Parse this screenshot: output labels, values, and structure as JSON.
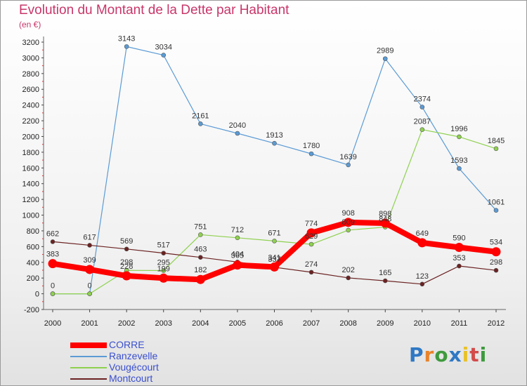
{
  "title": "Evolution du Montant de la Dette par Habitant",
  "unit": "(en €)",
  "logo": {
    "text": "Proxiti",
    "letters": [
      {
        "ch": "P",
        "color": "#2f78c4"
      },
      {
        "ch": "r",
        "color": "#e8832a"
      },
      {
        "ch": "o",
        "color": "#3e9a3e"
      },
      {
        "ch": "x",
        "color": "#2f78c4"
      },
      {
        "ch": "i",
        "color": "#e8c22a"
      },
      {
        "ch": "t",
        "color": "#d34b4b"
      },
      {
        "ch": "i",
        "color": "#3e9a3e"
      }
    ]
  },
  "chart_data": {
    "type": "line",
    "categories": [
      "2000",
      "2001",
      "2002",
      "2003",
      "2004",
      "2005",
      "2006",
      "2007",
      "2008",
      "2009",
      "2010",
      "2011",
      "2012"
    ],
    "ylim": [
      -200,
      3200
    ],
    "yticks": [
      -200,
      0,
      200,
      400,
      600,
      800,
      1000,
      1200,
      1400,
      1600,
      1800,
      2000,
      2200,
      2400,
      2600,
      2800,
      3000,
      3200
    ],
    "grid": false,
    "legend_position": "bottom-left",
    "series": [
      {
        "name": "CORRE",
        "color": "#ff0000",
        "values": [
          383,
          309,
          228,
          199,
          182,
          365,
          341,
          774,
          908,
          898,
          649,
          590,
          534
        ]
      },
      {
        "name": "Ranzevelle",
        "color": "#5b9bd5",
        "values": [
          0,
          0,
          3143,
          3034,
          2161,
          2040,
          1913,
          1780,
          1639,
          2989,
          2374,
          1593,
          1061
        ]
      },
      {
        "name": "Vougécourt",
        "color": "#8fd14f",
        "values": [
          0,
          0,
          298,
          295,
          751,
          712,
          671,
          629,
          809,
          848,
          2087,
          1996,
          1845
        ]
      },
      {
        "name": "Montcourt",
        "color": "#6b2222",
        "values": [
          662,
          617,
          569,
          517,
          463,
          404,
          337,
          274,
          202,
          165,
          123,
          353,
          298
        ]
      }
    ],
    "data_labels": [
      {
        "series": 0,
        "labels": [
          "383",
          "309",
          "228",
          "199",
          "182",
          "365",
          "341",
          "774",
          "908",
          "898",
          "649",
          "590",
          "534"
        ]
      },
      {
        "series": 1,
        "labels": [
          "0",
          "0",
          "3143",
          "3034",
          "2161",
          "2040",
          "1913",
          "1780",
          "1639",
          "2989",
          "2374",
          "1593",
          "1061"
        ]
      },
      {
        "series": 2,
        "labels": [
          "",
          "",
          "298",
          "295",
          "751",
          "712",
          "671",
          "629",
          "809",
          "848",
          "2087",
          "1996",
          "1845"
        ]
      },
      {
        "series": 3,
        "labels": [
          "662",
          "617",
          "569",
          "517",
          "463",
          "404",
          "337",
          "274",
          "202",
          "165",
          "123",
          "353",
          "298"
        ]
      }
    ]
  }
}
